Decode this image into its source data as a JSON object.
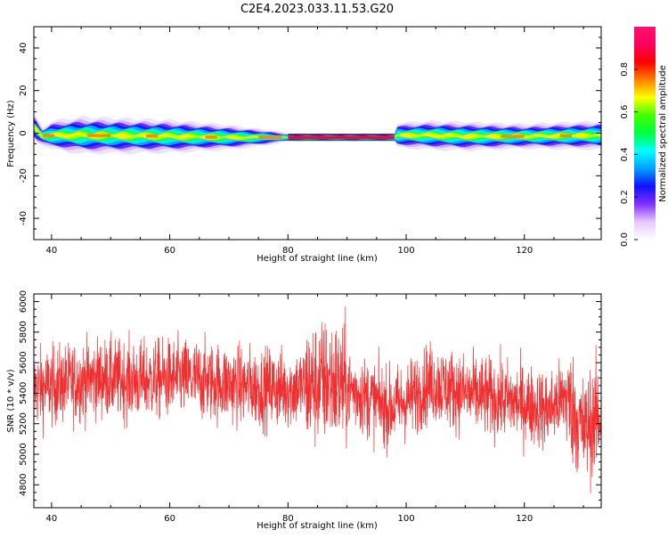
{
  "figure": {
    "title": "C2E4.2023.033.11.53.G20"
  },
  "chart_data": [
    {
      "type": "heatmap",
      "xlabel": "Height of straight line (km)",
      "ylabel": "Frequency (Hz)",
      "xlim": [
        37,
        133
      ],
      "ylim": [
        -50,
        50
      ],
      "xticks": [
        40,
        60,
        80,
        100,
        120
      ],
      "yticks": [
        -40,
        -20,
        0,
        20,
        40
      ],
      "ridge": [
        {
          "x": 37.0,
          "y": 3.0,
          "width": 3.0
        },
        {
          "x": 37.6,
          "y": 1.0,
          "width": 3.0
        },
        {
          "x": 38.4,
          "y": -1.5,
          "width": 2.0
        },
        {
          "x": 40.0,
          "y": -1.0,
          "width": 3.5
        },
        {
          "x": 45.0,
          "y": -1.0,
          "width": 4.5
        },
        {
          "x": 60.0,
          "y": -1.5,
          "width": 4.0
        },
        {
          "x": 70.0,
          "y": -2.0,
          "width": 3.0
        },
        {
          "x": 76.0,
          "y": -2.0,
          "width": 2.0
        },
        {
          "x": 80.0,
          "y": -2.0,
          "width": 1.0
        },
        {
          "x": 98.0,
          "y": -2.0,
          "width": 1.0
        },
        {
          "x": 98.5,
          "y": -1.0,
          "width": 3.0
        },
        {
          "x": 104.0,
          "y": -1.0,
          "width": 3.5
        },
        {
          "x": 110.0,
          "y": -1.5,
          "width": 3.5
        },
        {
          "x": 120.0,
          "y": -1.5,
          "width": 3.0
        },
        {
          "x": 133.0,
          "y": -1.0,
          "width": 3.5
        }
      ]
    },
    {
      "type": "line",
      "xlabel": "Height of straight line (km)",
      "ylabel": "SNR (10 * v/v)",
      "xlim": [
        37,
        133
      ],
      "ylim": [
        4650,
        6050
      ],
      "xticks": [
        40,
        60,
        80,
        100,
        120
      ],
      "yticks": [
        4800,
        5000,
        5200,
        5400,
        5600,
        5800,
        6000
      ],
      "series_color": "#f03030",
      "trend": [
        {
          "x": 37,
          "y": 5430
        },
        {
          "x": 42,
          "y": 5460
        },
        {
          "x": 48,
          "y": 5500
        },
        {
          "x": 55,
          "y": 5480
        },
        {
          "x": 62,
          "y": 5500
        },
        {
          "x": 68,
          "y": 5470
        },
        {
          "x": 74,
          "y": 5440
        },
        {
          "x": 80,
          "y": 5430
        },
        {
          "x": 84,
          "y": 5450
        },
        {
          "x": 87,
          "y": 5480
        },
        {
          "x": 92,
          "y": 5400
        },
        {
          "x": 97,
          "y": 5300
        },
        {
          "x": 100,
          "y": 5350
        },
        {
          "x": 104,
          "y": 5470
        },
        {
          "x": 110,
          "y": 5400
        },
        {
          "x": 116,
          "y": 5360
        },
        {
          "x": 120,
          "y": 5330
        },
        {
          "x": 124,
          "y": 5290
        },
        {
          "x": 127,
          "y": 5380
        },
        {
          "x": 130,
          "y": 5150
        },
        {
          "x": 133,
          "y": 5260
        }
      ],
      "noise_amplitude": 130
    }
  ],
  "colorbar": {
    "label": "Normalized spectral amplitude",
    "ticks": [
      "0.0",
      "0.2",
      "0.4",
      "0.6",
      "0.8"
    ],
    "tick_values": [
      0.0,
      0.2,
      0.4,
      0.6,
      0.8
    ],
    "range": [
      0,
      1
    ],
    "colors": [
      "#ffffff",
      "#e8c8ff",
      "#8030ff",
      "#1010ff",
      "#00a0ff",
      "#00ffff",
      "#00ff40",
      "#40ff00",
      "#ffff00",
      "#ff8000",
      "#ff0000",
      "#ff0060",
      "#ff1070"
    ]
  }
}
